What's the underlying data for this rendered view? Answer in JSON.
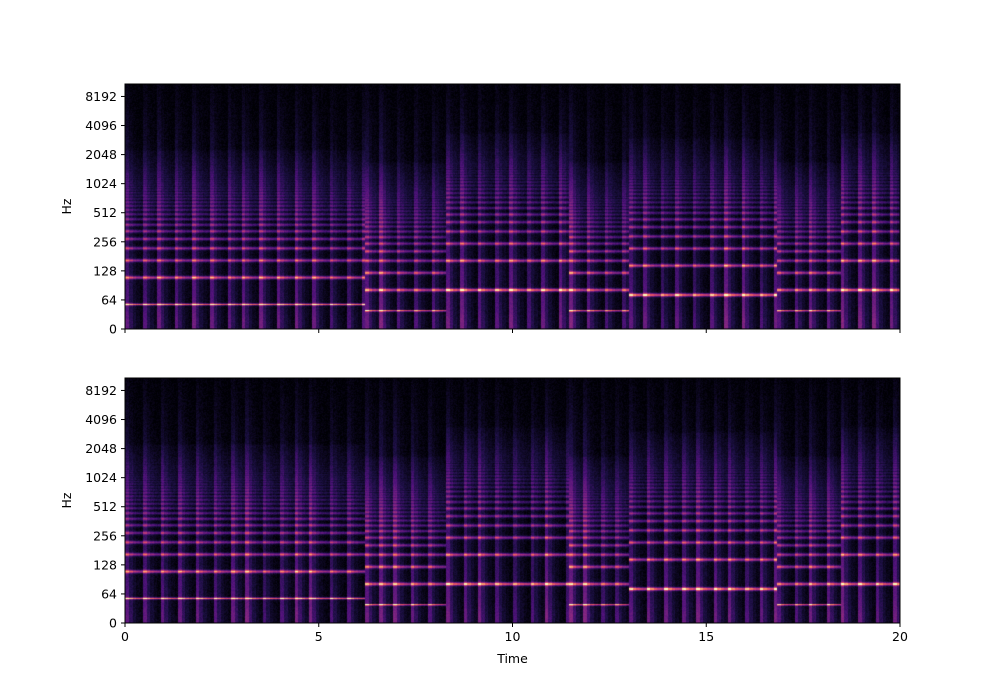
{
  "chart_data": [
    {
      "type": "heatmap",
      "xlabel": "",
      "ylabel": "Hz",
      "xlim": [
        0,
        20
      ],
      "ylim": [
        0,
        11025
      ],
      "yscale": "log2 (with linear region near 0)",
      "x_ticks": [
        0,
        5,
        10,
        15,
        20
      ],
      "x_tick_labels_shown": false,
      "y_ticks": [
        0,
        64,
        128,
        256,
        512,
        1024,
        2048,
        4096,
        8192
      ],
      "y_tick_labels": [
        "0",
        "64",
        "128",
        "256",
        "512",
        "1024",
        "2048",
        "4096",
        "8192"
      ],
      "colormap": [
        "#000004",
        "#51127c",
        "#b73779",
        "#fc8961",
        "#fcfdbf"
      ],
      "note_segments": [
        {
          "start": 0.0,
          "end": 6.2,
          "fundamental_hz": 55
        },
        {
          "start": 6.2,
          "end": 8.3,
          "fundamental_hz": 41
        },
        {
          "start": 8.3,
          "end": 11.5,
          "fundamental_hz": 82
        },
        {
          "start": 11.5,
          "end": 13.0,
          "fundamental_hz": 41
        },
        {
          "start": 13.0,
          "end": 16.8,
          "fundamental_hz": 73
        },
        {
          "start": 16.8,
          "end": 18.5,
          "fundamental_hz": 41
        },
        {
          "start": 18.5,
          "end": 20.0,
          "fundamental_hz": 82
        }
      ]
    },
    {
      "type": "heatmap",
      "xlabel": "Time",
      "ylabel": "Hz",
      "xlim": [
        0,
        20
      ],
      "ylim": [
        0,
        11025
      ],
      "yscale": "log2 (with linear region near 0)",
      "x_ticks": [
        0,
        5,
        10,
        15,
        20
      ],
      "x_tick_labels": [
        "0",
        "5",
        "10",
        "15",
        "20"
      ],
      "x_tick_labels_shown": true,
      "y_ticks": [
        0,
        64,
        128,
        256,
        512,
        1024,
        2048,
        4096,
        8192
      ],
      "y_tick_labels": [
        "0",
        "64",
        "128",
        "256",
        "512",
        "1024",
        "2048",
        "4096",
        "8192"
      ],
      "colormap": [
        "#000004",
        "#51127c",
        "#b73779",
        "#fc8961",
        "#fcfdbf"
      ],
      "note_segments": [
        {
          "start": 0.0,
          "end": 6.2,
          "fundamental_hz": 55
        },
        {
          "start": 6.2,
          "end": 8.3,
          "fundamental_hz": 41
        },
        {
          "start": 8.3,
          "end": 11.5,
          "fundamental_hz": 82
        },
        {
          "start": 11.5,
          "end": 13.0,
          "fundamental_hz": 41
        },
        {
          "start": 13.0,
          "end": 16.8,
          "fundamental_hz": 73
        },
        {
          "start": 16.8,
          "end": 18.5,
          "fundamental_hz": 41
        },
        {
          "start": 18.5,
          "end": 20.0,
          "fundamental_hz": 82
        }
      ]
    }
  ]
}
